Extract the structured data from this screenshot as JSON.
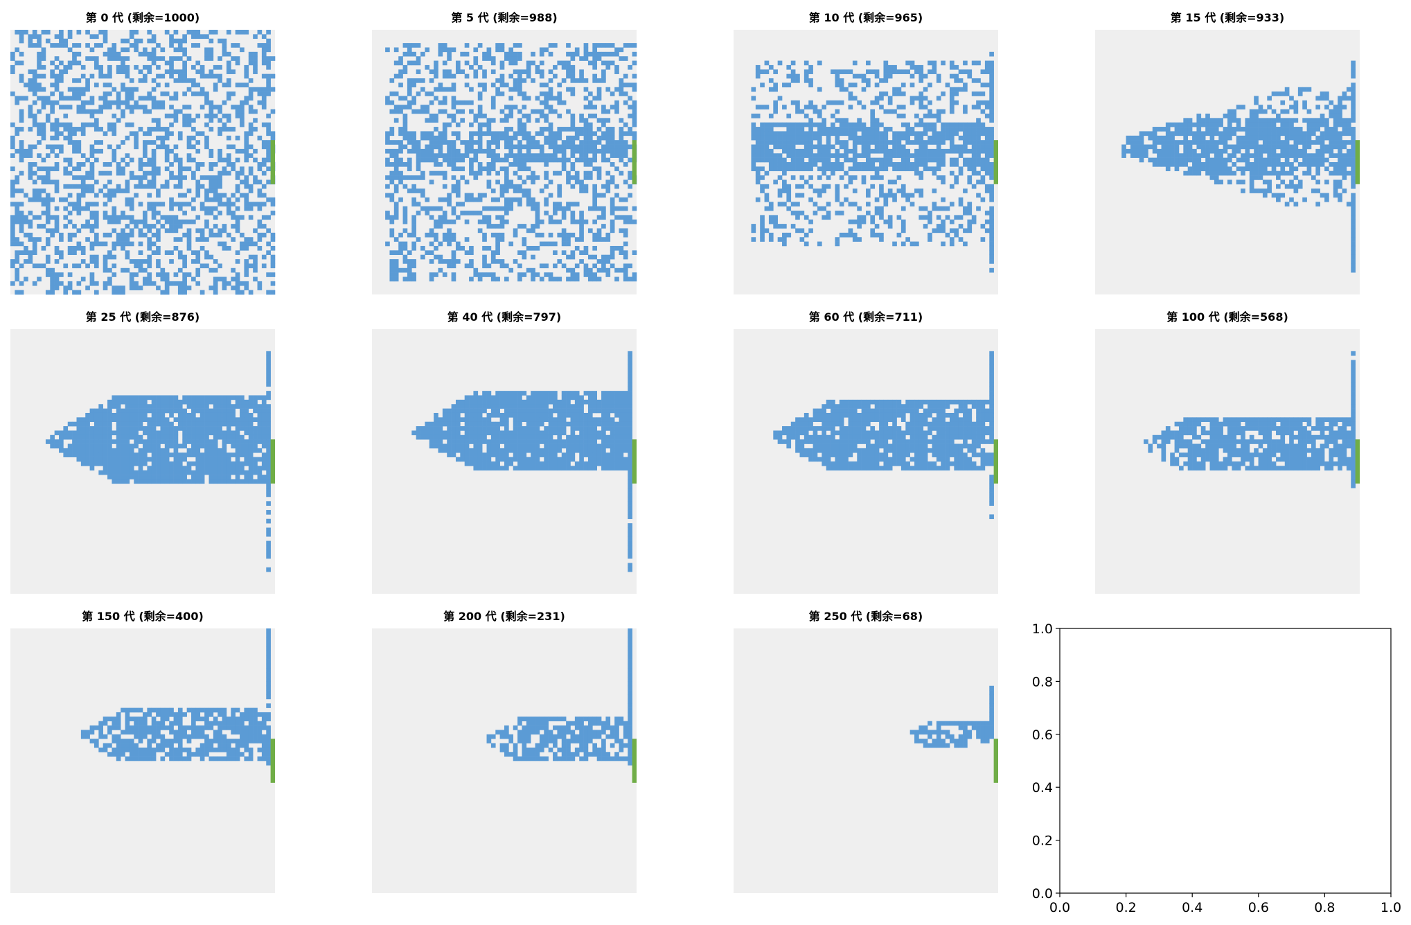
{
  "figure": {
    "background": "#ffffff"
  },
  "colors": {
    "grid_background": "#efefef",
    "particle": "#5b9bd5",
    "exit": "#70ad47",
    "axes": "#000000"
  },
  "chart_data": [
    {
      "type": "heatmap",
      "title": "第 0 代 (剩余=1000)",
      "generation": 0,
      "remaining": 1000
    },
    {
      "type": "heatmap",
      "title": "第 5 代 (剩余=988)",
      "generation": 5,
      "remaining": 988
    },
    {
      "type": "heatmap",
      "title": "第 10 代 (剩余=965)",
      "generation": 10,
      "remaining": 965
    },
    {
      "type": "heatmap",
      "title": "第 15 代 (剩余=933)",
      "generation": 15,
      "remaining": 933
    },
    {
      "type": "heatmap",
      "title": "第 25 代 (剩余=876)",
      "generation": 25,
      "remaining": 876
    },
    {
      "type": "heatmap",
      "title": "第 40 代 (剩余=797)",
      "generation": 40,
      "remaining": 797
    },
    {
      "type": "heatmap",
      "title": "第 60 代 (剩余=711)",
      "generation": 60,
      "remaining": 711
    },
    {
      "type": "heatmap",
      "title": "第 100 代 (剩余=568)",
      "generation": 100,
      "remaining": 568
    },
    {
      "type": "heatmap",
      "title": "第 150 代 (剩余=400)",
      "generation": 150,
      "remaining": 400
    },
    {
      "type": "heatmap",
      "title": "第 200 代 (剩余=231)",
      "generation": 200,
      "remaining": 231
    },
    {
      "type": "heatmap",
      "title": "第 250 代 (剩余=68)",
      "generation": 250,
      "remaining": 68
    },
    {
      "type": "line",
      "title": "",
      "xlim": [
        0.0,
        1.0
      ],
      "ylim": [
        0.0,
        1.0
      ],
      "x_ticks": [
        "0.0",
        "0.2",
        "0.4",
        "0.6",
        "0.8",
        "1.0"
      ],
      "y_ticks": [
        "0.0",
        "0.2",
        "0.4",
        "0.6",
        "0.8",
        "1.0"
      ]
    }
  ]
}
